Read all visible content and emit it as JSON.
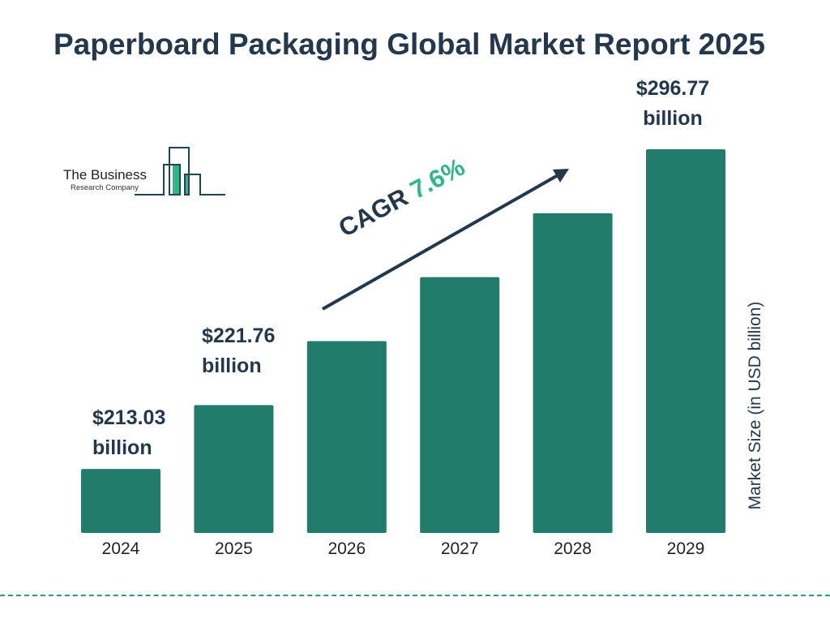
{
  "chart_data": {
    "type": "bar",
    "title": "Paperboard Packaging Global Market Report 2025",
    "ylabel": "Market Size (in USD billion)",
    "categories": [
      "2024",
      "2025",
      "2026",
      "2027",
      "2028",
      "2029"
    ],
    "values": [
      213.03,
      221.76,
      238.6,
      256.8,
      276.3,
      296.77
    ],
    "data_labels": [
      {
        "category": "2024",
        "value": "$213.03",
        "unit": "billion"
      },
      {
        "category": "2025",
        "value": "$221.76",
        "unit": "billion"
      },
      {
        "category": "2029",
        "value": "$296.77",
        "unit": "billion"
      }
    ],
    "annotation": {
      "label": "CAGR",
      "value": "7.6%"
    },
    "grid": false,
    "bar_color": "#217c6b",
    "text_color": "#23384d",
    "accent_color": "#2fb885"
  },
  "logo": {
    "line1": "The Business",
    "line2": "Research Company"
  }
}
